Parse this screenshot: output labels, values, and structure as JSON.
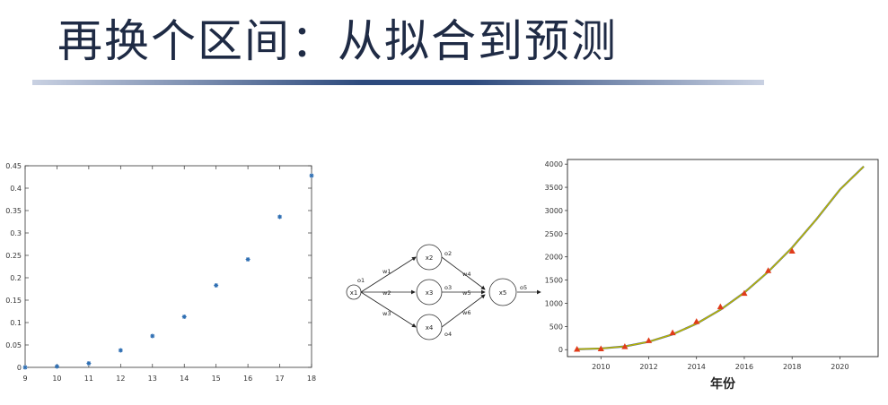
{
  "slide": {
    "title": "再换个区间：从拟合到预测"
  },
  "chart_data": [
    {
      "type": "scatter",
      "title": "",
      "xlabel": "",
      "ylabel": "",
      "xlim": [
        9,
        18
      ],
      "ylim": [
        0,
        0.45
      ],
      "xticks": [
        9,
        10,
        11,
        12,
        13,
        14,
        15,
        16,
        17,
        18
      ],
      "yticks": [
        0,
        0.05,
        0.1,
        0.15,
        0.2,
        0.25,
        0.3,
        0.35,
        0.4,
        0.45
      ],
      "marker_color": "#2f6fb3",
      "series": [
        {
          "x": [
            9,
            10,
            11,
            12,
            13,
            14,
            15,
            16,
            17,
            18
          ],
          "y": [
            0.0,
            0.002,
            0.009,
            0.038,
            0.07,
            0.113,
            0.183,
            0.241,
            0.336,
            0.428
          ]
        }
      ]
    },
    {
      "type": "line",
      "title": "",
      "xlabel": "年份",
      "ylabel": "",
      "xlim": [
        2008.6,
        2021.6
      ],
      "ylim": [
        -150,
        4100
      ],
      "xticks": [
        2010,
        2012,
        2014,
        2016,
        2018,
        2020
      ],
      "yticks": [
        0,
        500,
        1000,
        1500,
        2000,
        2500,
        3000,
        3500,
        4000
      ],
      "fit_curve": {
        "x": [
          2009,
          2010,
          2011,
          2012,
          2013,
          2014,
          2015,
          2016,
          2017,
          2018,
          2019,
          2020,
          2021
        ],
        "y": [
          10,
          25,
          70,
          170,
          330,
          560,
          860,
          1230,
          1680,
          2200,
          2800,
          3450,
          3950
        ],
        "color": "#b8b800",
        "edge_color": "#3a48a8"
      },
      "observed": {
        "x": [
          2009,
          2010,
          2011,
          2012,
          2013,
          2014,
          2015,
          2016,
          2017,
          2018
        ],
        "y": [
          5,
          15,
          60,
          190,
          360,
          600,
          920,
          1210,
          1700,
          2120
        ],
        "color": "#e03b1a"
      }
    }
  ],
  "network": {
    "nodes": [
      {
        "label": "x1"
      },
      {
        "label": "x2"
      },
      {
        "label": "x3"
      },
      {
        "label": "x4"
      },
      {
        "label": "x5"
      }
    ],
    "edge_labels": [
      "o1",
      "w1",
      "w2",
      "w3",
      "o2",
      "o3",
      "o4",
      "w4",
      "w5",
      "w6",
      "o5"
    ]
  }
}
